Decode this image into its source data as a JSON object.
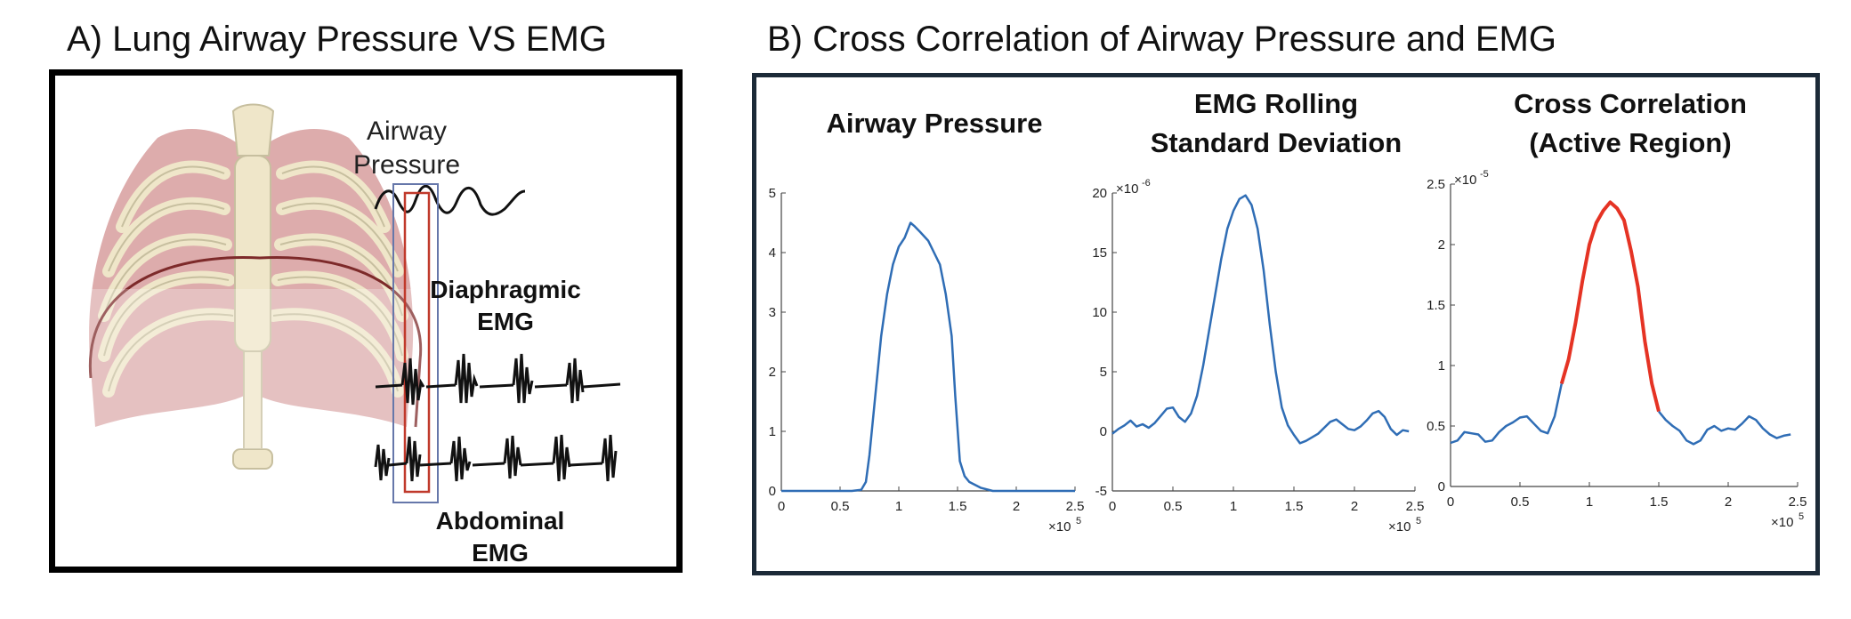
{
  "panel_a": {
    "title": "A) Lung Airway Pressure VS EMG",
    "labels": {
      "airway_line1": "Airway",
      "airway_line2": "Pressure",
      "diaphragmic_line1": "Diaphragmic",
      "diaphragmic_line2": "EMG",
      "abdominal_line1": "Abdominal",
      "abdominal_line2": "EMG"
    },
    "illustration": "rib-cage-icon"
  },
  "panel_b": {
    "title": "B) Cross Correlation of Airway Pressure and EMG"
  },
  "chart_data": [
    {
      "type": "line",
      "title": "Airway Pressure",
      "xlabel": "",
      "ylabel": "",
      "x_multiplier": "×10^5",
      "xlim": [
        0,
        2.5
      ],
      "ylim": [
        0,
        5
      ],
      "xticks": [
        0,
        0.5,
        1,
        1.5,
        2,
        2.5
      ],
      "yticks": [
        0,
        1,
        2,
        3,
        4,
        5
      ],
      "grid": false,
      "color": "#2f6db5",
      "series": [
        {
          "x": [
            0,
            0.6,
            0.68,
            0.72,
            0.75,
            0.8,
            0.85,
            0.9,
            0.95,
            1.0,
            1.05,
            1.1,
            1.13,
            1.18,
            1.25,
            1.3,
            1.35,
            1.4,
            1.45,
            1.48,
            1.52,
            1.56,
            1.6,
            1.7,
            1.8,
            2.0,
            2.5
          ],
          "y": [
            0,
            0,
            0.02,
            0.15,
            0.6,
            1.6,
            2.6,
            3.3,
            3.8,
            4.1,
            4.25,
            4.5,
            4.45,
            4.35,
            4.2,
            4.0,
            3.8,
            3.3,
            2.6,
            1.6,
            0.5,
            0.25,
            0.15,
            0.05,
            0,
            0,
            0
          ]
        }
      ]
    },
    {
      "type": "line",
      "title": "EMG Rolling Standard Deviation",
      "xlabel": "",
      "ylabel": "",
      "y_multiplier": "×10^-6",
      "x_multiplier": "×10^5",
      "xlim": [
        0,
        2.5
      ],
      "ylim": [
        -5,
        20
      ],
      "xticks": [
        0,
        0.5,
        1,
        1.5,
        2,
        2.5
      ],
      "yticks": [
        -5,
        0,
        5,
        10,
        15,
        20
      ],
      "grid": false,
      "color": "#2f6db5",
      "series": [
        {
          "x": [
            0,
            0.05,
            0.1,
            0.15,
            0.2,
            0.25,
            0.3,
            0.35,
            0.4,
            0.45,
            0.5,
            0.55,
            0.6,
            0.65,
            0.7,
            0.75,
            0.8,
            0.85,
            0.9,
            0.95,
            1.0,
            1.05,
            1.1,
            1.15,
            1.2,
            1.25,
            1.3,
            1.35,
            1.4,
            1.45,
            1.5,
            1.55,
            1.6,
            1.65,
            1.7,
            1.75,
            1.8,
            1.85,
            1.9,
            1.95,
            2.0,
            2.05,
            2.1,
            2.15,
            2.2,
            2.25,
            2.3,
            2.35,
            2.4,
            2.45
          ],
          "y": [
            -0.2,
            0.2,
            0.5,
            0.9,
            0.4,
            0.6,
            0.3,
            0.7,
            1.3,
            1.9,
            2.0,
            1.2,
            0.8,
            1.5,
            3.0,
            5.5,
            8.5,
            11.5,
            14.5,
            17.0,
            18.5,
            19.5,
            19.8,
            19.0,
            17.0,
            13.5,
            9.0,
            5.0,
            2.0,
            0.5,
            -0.3,
            -1.0,
            -0.8,
            -0.5,
            -0.2,
            0.3,
            0.8,
            1.0,
            0.6,
            0.2,
            0.1,
            0.4,
            0.9,
            1.5,
            1.7,
            1.2,
            0.2,
            -0.3,
            0.1,
            0.0
          ]
        }
      ]
    },
    {
      "type": "line",
      "title": "Cross Correlation (Active Region)",
      "xlabel": "",
      "ylabel": "",
      "y_multiplier": "×10^-5",
      "x_multiplier": "×10^5",
      "xlim": [
        0,
        2.5
      ],
      "ylim": [
        0,
        2.5
      ],
      "xticks": [
        0,
        0.5,
        1,
        1.5,
        2,
        2.5
      ],
      "yticks": [
        0,
        0.5,
        1,
        1.5,
        2,
        2.5
      ],
      "grid": false,
      "series": [
        {
          "name": "",
          "color": "#2f6db5",
          "x": [
            0,
            0.05,
            0.1,
            0.15,
            0.2,
            0.25,
            0.3,
            0.35,
            0.4,
            0.45,
            0.5,
            0.55,
            0.6,
            0.65,
            0.7,
            0.75,
            0.8
          ],
          "y": [
            0.36,
            0.38,
            0.45,
            0.44,
            0.43,
            0.37,
            0.38,
            0.45,
            0.5,
            0.53,
            0.57,
            0.58,
            0.52,
            0.46,
            0.44,
            0.58,
            0.85
          ]
        },
        {
          "name": "",
          "color": "#e53324",
          "x": [
            0.8,
            0.85,
            0.9,
            0.95,
            1.0,
            1.05,
            1.1,
            1.15,
            1.2,
            1.25,
            1.3,
            1.35,
            1.4,
            1.45,
            1.5
          ],
          "y": [
            0.85,
            1.05,
            1.35,
            1.7,
            2.0,
            2.18,
            2.28,
            2.35,
            2.3,
            2.2,
            1.95,
            1.65,
            1.2,
            0.85,
            0.62
          ]
        },
        {
          "name": "",
          "color": "#2f6db5",
          "x": [
            1.5,
            1.55,
            1.6,
            1.65,
            1.7,
            1.75,
            1.8,
            1.85,
            1.9,
            1.95,
            2.0,
            2.05,
            2.1,
            2.15,
            2.2,
            2.25,
            2.3,
            2.35,
            2.4,
            2.45
          ],
          "y": [
            0.62,
            0.55,
            0.5,
            0.46,
            0.38,
            0.35,
            0.38,
            0.47,
            0.5,
            0.46,
            0.48,
            0.47,
            0.52,
            0.58,
            0.55,
            0.48,
            0.43,
            0.4,
            0.42,
            0.43
          ]
        }
      ]
    }
  ]
}
